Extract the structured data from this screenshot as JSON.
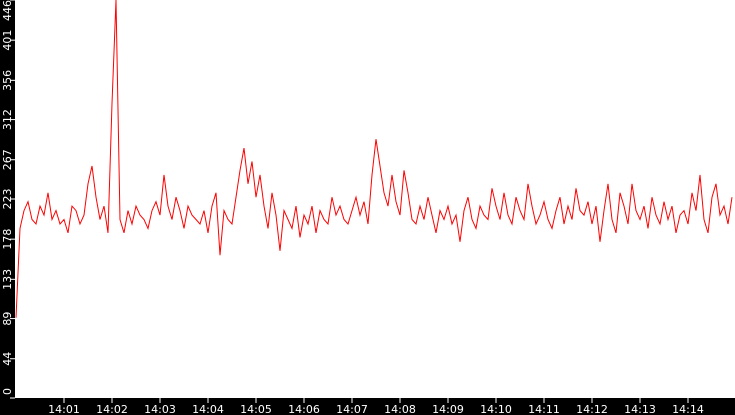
{
  "chart_data": {
    "type": "line",
    "title": "",
    "xlabel": "",
    "ylabel": "",
    "ylim": [
      0,
      446
    ],
    "xlim": [
      "14:00",
      "14:15"
    ],
    "y_ticks": [
      "0",
      "44",
      "89",
      "133",
      "178",
      "223",
      "267",
      "312",
      "356",
      "401",
      "446"
    ],
    "x_ticks": [
      "14:01",
      "14:02",
      "14:03",
      "14:04",
      "14:05",
      "14:06",
      "14:07",
      "14:08",
      "14:09",
      "14:10",
      "14:11",
      "14:12",
      "14:13",
      "14:14"
    ],
    "grid": false,
    "colors": {
      "series": "#ff0000",
      "plot_background": "#ffffff",
      "frame": "#000000",
      "text": "#ffffff"
    },
    "samples_per_minute": 12,
    "minutes": [
      {
        "t": "14:00",
        "y": [
          90,
          190,
          210,
          220,
          200,
          195,
          215,
          205,
          230,
          200,
          210,
          195
        ]
      },
      {
        "t": "14:01",
        "y": [
          200,
          185,
          215,
          210,
          195,
          205,
          240,
          260,
          225,
          200,
          215,
          185
        ]
      },
      {
        "t": "14:02",
        "y": [
          330,
          446,
          200,
          185,
          210,
          195,
          215,
          205,
          200,
          190,
          210,
          220
        ]
      },
      {
        "t": "14:03",
        "y": [
          205,
          250,
          215,
          200,
          225,
          210,
          190,
          215,
          205,
          200,
          195,
          210
        ]
      },
      {
        "t": "14:04",
        "y": [
          185,
          215,
          230,
          160,
          210,
          200,
          195,
          225,
          255,
          280,
          240,
          265
        ]
      },
      {
        "t": "14:05",
        "y": [
          225,
          250,
          215,
          190,
          230,
          205,
          165,
          210,
          200,
          190,
          215,
          180
        ]
      },
      {
        "t": "14:06",
        "y": [
          205,
          195,
          215,
          185,
          210,
          200,
          195,
          225,
          205,
          215,
          200,
          195
        ]
      },
      {
        "t": "14:07",
        "y": [
          210,
          225,
          205,
          220,
          195,
          250,
          290,
          260,
          230,
          215,
          250,
          220
        ]
      },
      {
        "t": "14:08",
        "y": [
          205,
          255,
          230,
          200,
          195,
          215,
          200,
          225,
          205,
          185,
          210,
          200
        ]
      },
      {
        "t": "14:09",
        "y": [
          215,
          195,
          205,
          175,
          210,
          225,
          200,
          190,
          215,
          205,
          200,
          235
        ]
      },
      {
        "t": "14:10",
        "y": [
          215,
          200,
          230,
          205,
          195,
          225,
          210,
          200,
          240,
          215,
          195,
          205
        ]
      },
      {
        "t": "14:11",
        "y": [
          220,
          200,
          190,
          210,
          225,
          195,
          215,
          200,
          235,
          210,
          205,
          220
        ]
      },
      {
        "t": "14:12",
        "y": [
          195,
          215,
          175,
          210,
          240,
          200,
          185,
          230,
          215,
          195,
          240,
          210
        ]
      },
      {
        "t": "14:13",
        "y": [
          200,
          215,
          190,
          225,
          205,
          195,
          220,
          200,
          215,
          185,
          205,
          210
        ]
      },
      {
        "t": "14:14",
        "y": [
          195,
          230,
          210,
          250,
          200,
          185,
          225,
          240,
          205,
          215,
          195,
          225
        ]
      }
    ]
  }
}
